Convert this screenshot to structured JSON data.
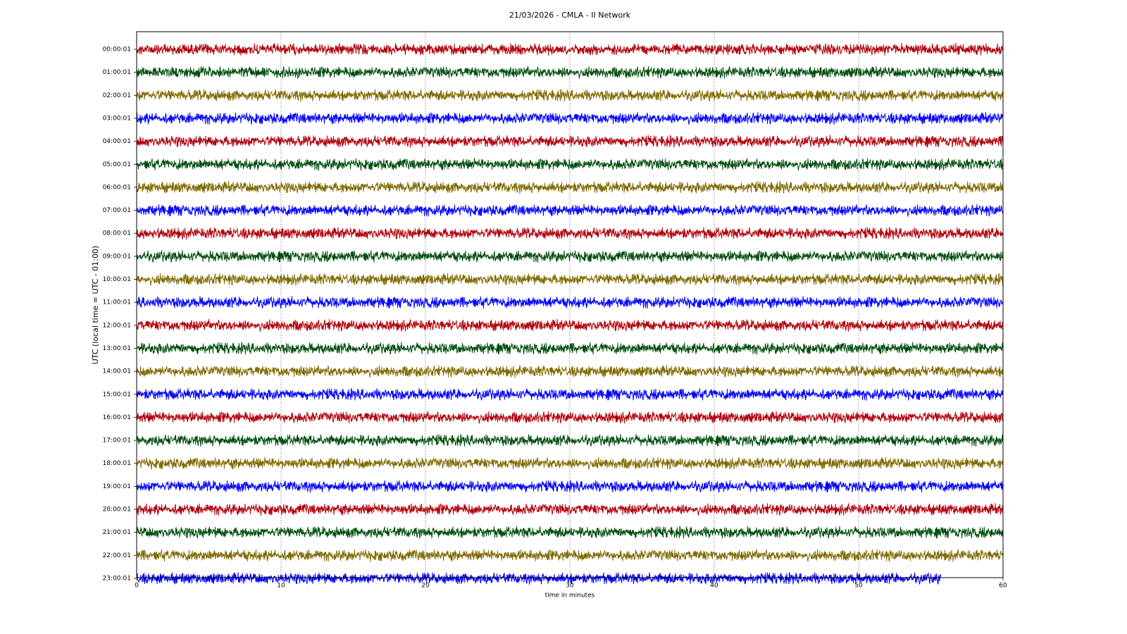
{
  "chart_data": {
    "type": "helicorder",
    "title": "21/03/2026 - CMLA - II Network",
    "xlabel": "time in minutes",
    "ylabel": "UTC (local time = UTC - 01:00)",
    "xlim": [
      0,
      60
    ],
    "xticks": [
      0,
      10,
      20,
      30,
      40,
      50,
      60
    ],
    "grid": true,
    "series": [
      {
        "name": "00:00:01",
        "color": "#b0000b",
        "xend": 60
      },
      {
        "name": "01:00:01",
        "color": "#004d0d",
        "xend": 60
      },
      {
        "name": "02:00:01",
        "color": "#7f6a00",
        "xend": 60
      },
      {
        "name": "03:00:01",
        "color": "#0000ff",
        "xend": 60
      },
      {
        "name": "04:00:01",
        "color": "#b0000b",
        "xend": 60
      },
      {
        "name": "05:00:01",
        "color": "#004d0d",
        "xend": 60
      },
      {
        "name": "06:00:01",
        "color": "#7f6a00",
        "xend": 60
      },
      {
        "name": "07:00:01",
        "color": "#0000ff",
        "xend": 60
      },
      {
        "name": "08:00:01",
        "color": "#b0000b",
        "xend": 60
      },
      {
        "name": "09:00:01",
        "color": "#004d0d",
        "xend": 60
      },
      {
        "name": "10:00:01",
        "color": "#7f6a00",
        "xend": 60
      },
      {
        "name": "11:00:01",
        "color": "#0000ff",
        "xend": 60
      },
      {
        "name": "12:00:01",
        "color": "#b0000b",
        "xend": 60
      },
      {
        "name": "13:00:01",
        "color": "#004d0d",
        "xend": 60
      },
      {
        "name": "14:00:01",
        "color": "#7f6a00",
        "xend": 60
      },
      {
        "name": "15:00:01",
        "color": "#0000ff",
        "xend": 60
      },
      {
        "name": "16:00:01",
        "color": "#b0000b",
        "xend": 60
      },
      {
        "name": "17:00:01",
        "color": "#004d0d",
        "xend": 60
      },
      {
        "name": "18:00:01",
        "color": "#7f6a00",
        "xend": 60
      },
      {
        "name": "19:00:01",
        "color": "#0000ff",
        "xend": 60
      },
      {
        "name": "20:00:01",
        "color": "#b0000b",
        "xend": 60
      },
      {
        "name": "21:00:01",
        "color": "#004d0d",
        "xend": 60
      },
      {
        "name": "22:00:01",
        "color": "#7f6a00",
        "xend": 60
      },
      {
        "name": "23:00:01",
        "color": "#0000ff",
        "xend": 55.7
      }
    ]
  }
}
